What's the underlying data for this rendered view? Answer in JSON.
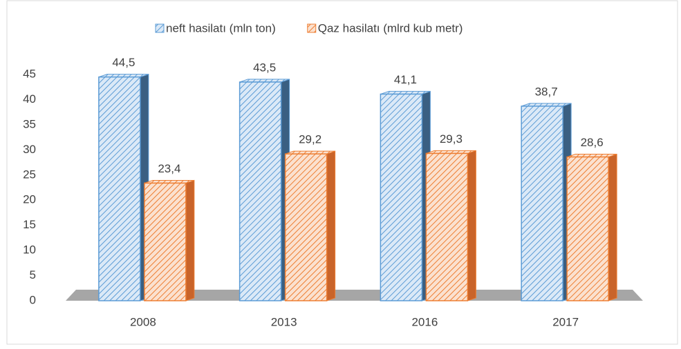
{
  "chart_data": {
    "type": "bar",
    "categories": [
      "2008",
      "2013",
      "2016",
      "2017"
    ],
    "series": [
      {
        "name": "neft hasilatı (mln ton)",
        "color": "#5b9bd5",
        "values": [
          44.5,
          43.5,
          41.1,
          38.7
        ],
        "value_labels": [
          "44,5",
          "43,5",
          "41,1",
          "38,7"
        ]
      },
      {
        "name": "Qaz hasilatı (mlrd kub metr)",
        "color": "#ed7d31",
        "values": [
          23.4,
          29.2,
          29.3,
          28.6
        ],
        "value_labels": [
          "23,4",
          "29,2",
          "29,3",
          "28,6"
        ]
      }
    ],
    "ylim": [
      0,
      45
    ],
    "yticks": [
      0,
      5,
      10,
      15,
      20,
      25,
      30,
      35,
      40,
      45
    ],
    "legend": "top"
  }
}
